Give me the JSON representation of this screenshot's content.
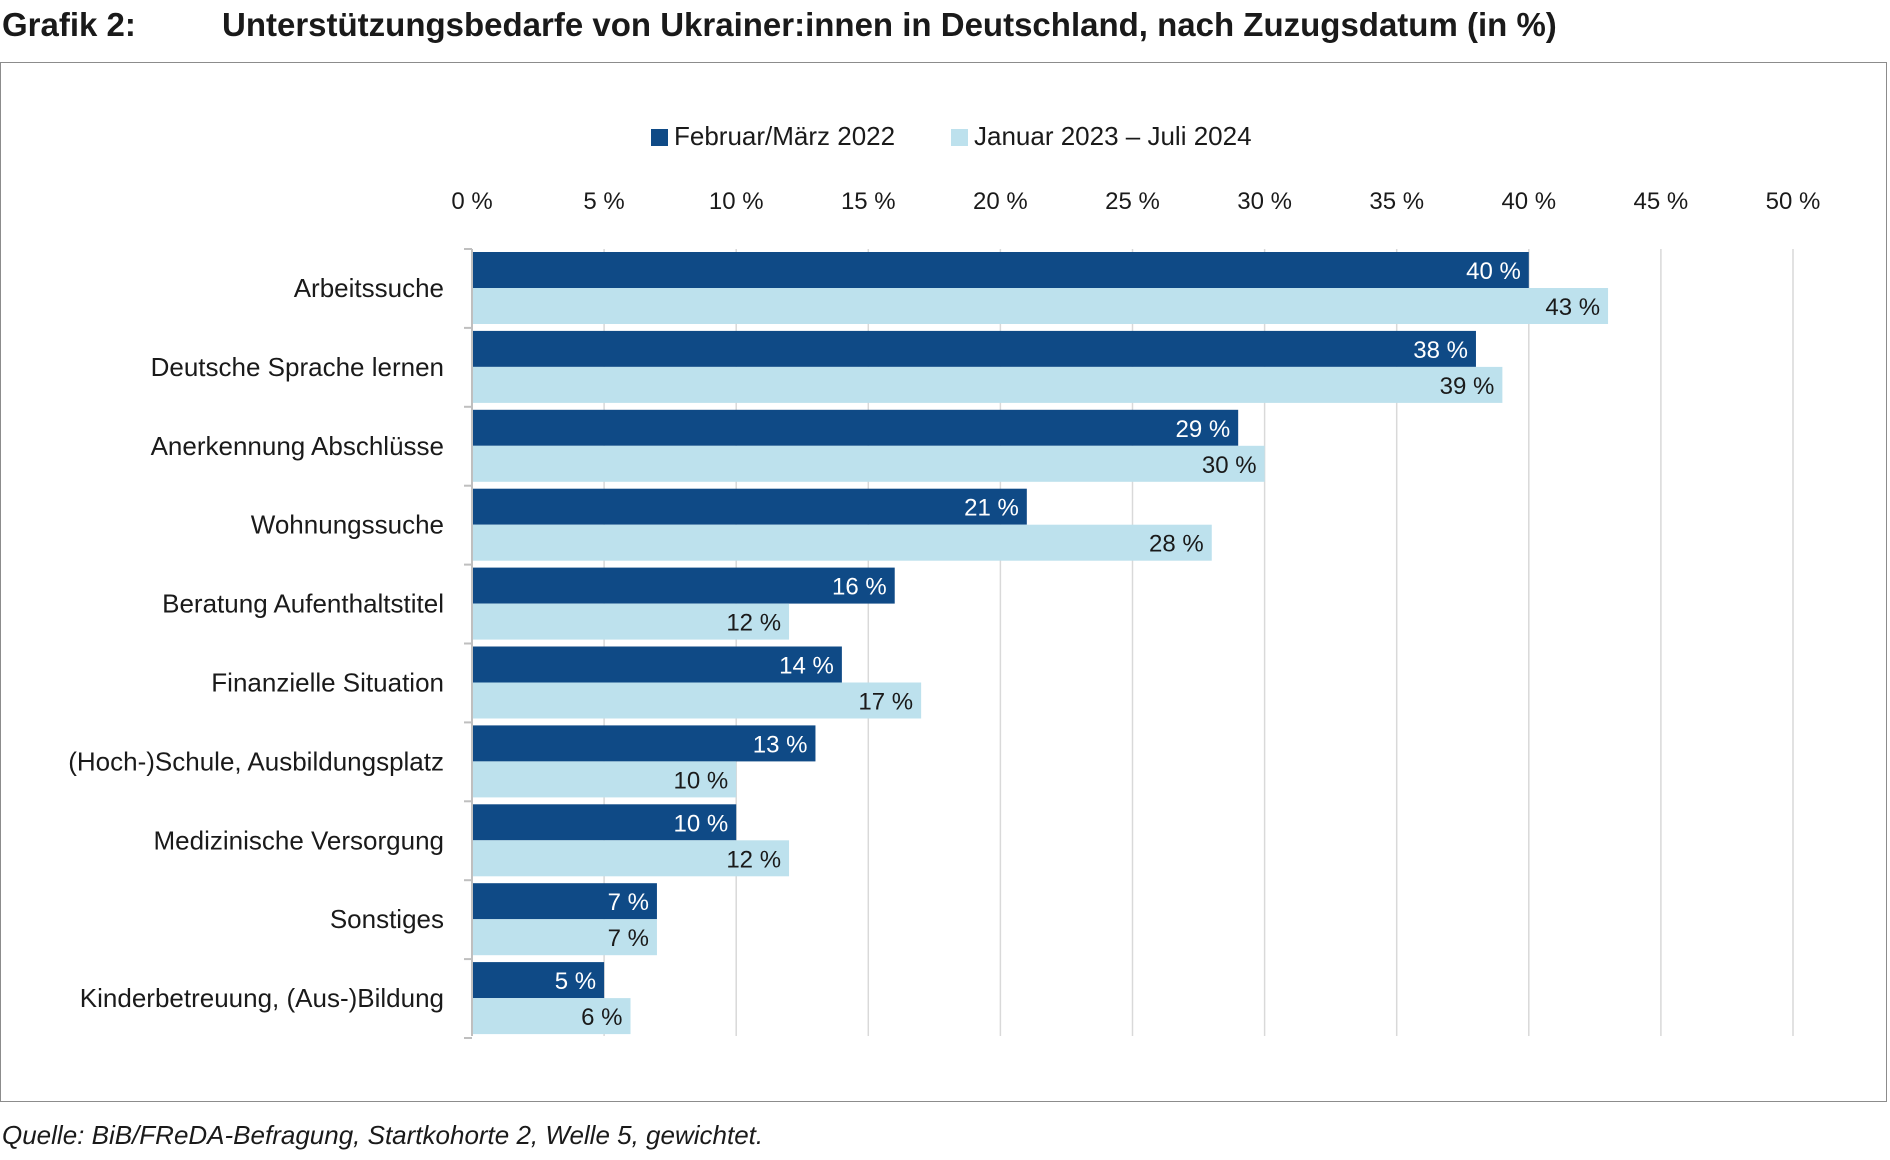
{
  "header": {
    "label": "Grafik 2:",
    "title": "Unterstützungsbedarfe von Ukrainer:innen in Deutschland, nach Zuzugsdatum (in %)"
  },
  "source": "Quelle: BiB/FReDA-Befragung, Startkohorte 2, Welle 5, gewichtet.",
  "colors": {
    "series_1": "#0f4a86",
    "series_2": "#bde1ed",
    "grid": "#d9d9d9",
    "axis": "#bfbfbf"
  },
  "chart_data": {
    "type": "bar",
    "orientation": "horizontal",
    "title": "Unterstützungsbedarfe von Ukrainer:innen in Deutschland, nach Zuzugsdatum (in %)",
    "xlabel": "",
    "ylabel": "",
    "xlim": [
      0,
      50
    ],
    "xticks": [
      0,
      5,
      10,
      15,
      20,
      25,
      30,
      35,
      40,
      45,
      50
    ],
    "xtick_labels": [
      "0 %",
      "5 %",
      "10 %",
      "15 %",
      "20 %",
      "25 %",
      "30 %",
      "35 %",
      "40 %",
      "45 %",
      "50 %"
    ],
    "grid": true,
    "legend_position": "top",
    "categories": [
      "Arbeitssuche",
      "Deutsche Sprache lernen",
      "Anerkennung Abschlüsse",
      "Wohnungssuche",
      "Beratung Aufenthaltstitel",
      "Finanzielle Situation",
      "(Hoch-)Schule, Ausbildungsplatz",
      "Medizinische Versorgung",
      "Sonstiges",
      "Kinderbetreuung, (Aus-)Bildung"
    ],
    "series": [
      {
        "name": "Februar/März 2022",
        "color": "#0f4a86",
        "values": [
          40,
          38,
          29,
          21,
          16,
          14,
          13,
          10,
          7,
          5
        ],
        "labels": [
          "40 %",
          "38 %",
          "29 %",
          "21 %",
          "16 %",
          "14 %",
          "13 %",
          "10 %",
          "7 %",
          "5 %"
        ]
      },
      {
        "name": "Januar 2023 – Juli 2024",
        "color": "#bde1ed",
        "values": [
          43,
          39,
          30,
          28,
          12,
          17,
          10,
          12,
          7,
          6
        ],
        "labels": [
          "43 %",
          "39 %",
          "30 %",
          "28 %",
          "12 %",
          "17 %",
          "10 %",
          "12 %",
          "7 %",
          "6 %"
        ]
      }
    ]
  }
}
